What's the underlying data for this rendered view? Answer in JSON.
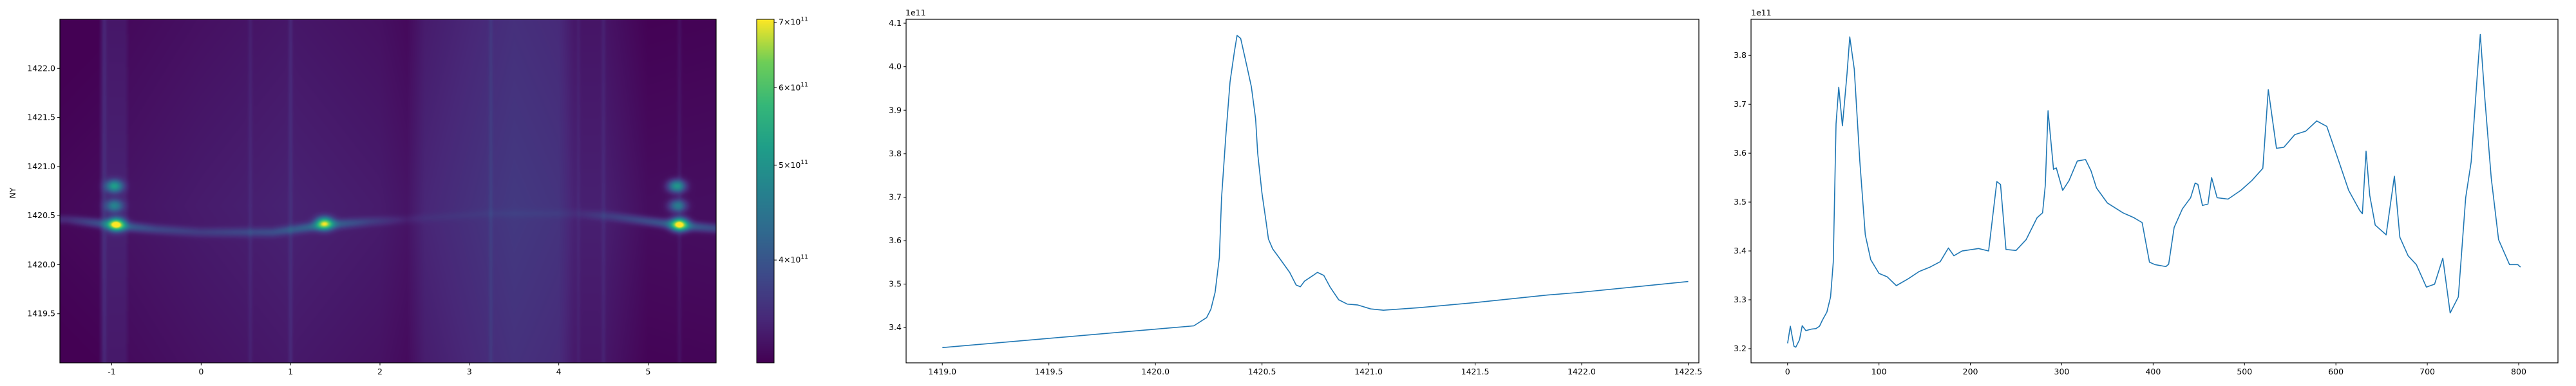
{
  "chart_data": [
    {
      "type": "heatmap",
      "xlim": [
        -1.58,
        5.76
      ],
      "ylim": [
        1419.0,
        1422.5
      ],
      "ylabel": "NY",
      "xticks": [
        -1,
        0,
        1,
        2,
        3,
        4,
        5
      ],
      "xtick_labels": [
        "-1",
        "0",
        "1",
        "2",
        "3",
        "4",
        "5"
      ],
      "yticks": [
        1419.5,
        1420.0,
        1420.5,
        1421.0,
        1421.5,
        1422.0
      ],
      "ytick_labels": [
        "1419.5",
        "1420.0",
        "1420.5",
        "1421.0",
        "1421.5",
        "1422.0"
      ],
      "colormap": "viridis",
      "color_scale": "log",
      "color_range": [
        314000000000.0,
        705000000000.0
      ],
      "colorbar": {
        "ticks": [
          400000000000.0,
          500000000000.0,
          600000000000.0,
          700000000000.0
        ],
        "tick_labels": [
          {
            "mant": "4",
            "exp": "11"
          },
          {
            "mant": "5",
            "exp": "11"
          },
          {
            "mant": "6",
            "exp": "11"
          },
          {
            "mant": "7",
            "exp": "11"
          }
        ]
      },
      "column_profile_1e11": [
        [
          -1.58,
          3.2
        ],
        [
          -1.15,
          3.22
        ],
        [
          -1.1,
          3.42
        ],
        [
          -0.85,
          3.42
        ],
        [
          -0.8,
          3.3
        ],
        [
          0,
          3.36
        ],
        [
          1,
          3.42
        ],
        [
          2,
          3.36
        ],
        [
          2.3,
          3.3
        ],
        [
          2.5,
          3.46
        ],
        [
          3.5,
          3.66
        ],
        [
          4.0,
          3.6
        ],
        [
          4.2,
          3.4
        ],
        [
          4.5,
          3.4
        ],
        [
          5.0,
          3.24
        ],
        [
          5.76,
          3.25
        ]
      ],
      "stripes": [
        [
          -1.08,
          0.12
        ],
        [
          0.55,
          0.1
        ],
        [
          1.0,
          0.14
        ],
        [
          3.24,
          0.14
        ],
        [
          4.22,
          0.08
        ],
        [
          4.5,
          0.1
        ],
        [
          5.35,
          0.1
        ]
      ],
      "ridge": [
        [
          -1.5,
          1420.46,
          0.3
        ],
        [
          -0.95,
          1420.4,
          0.9
        ],
        [
          -0.5,
          1420.36,
          0.5
        ],
        [
          0,
          1420.33,
          0.35
        ],
        [
          0.8,
          1420.33,
          0.5
        ],
        [
          1.35,
          1420.4,
          0.9
        ],
        [
          1.9,
          1420.44,
          0.35
        ],
        [
          2.3,
          1420.46,
          0.1
        ],
        [
          3.2,
          1420.52,
          0.08
        ],
        [
          4.2,
          1420.52,
          0.1
        ],
        [
          4.6,
          1420.49,
          0.35
        ],
        [
          5.35,
          1420.4,
          0.9
        ],
        [
          5.76,
          1420.37,
          0.6
        ]
      ],
      "hotspots": [
        {
          "x": -0.95,
          "y": 1420.41,
          "value": 700000000000.0
        },
        {
          "x": -0.97,
          "y": 1420.8,
          "value": 530000000000.0
        },
        {
          "x": -0.97,
          "y": 1420.6,
          "value": 480000000000.0
        },
        {
          "x": 1.38,
          "y": 1420.42,
          "value": 640000000000.0
        },
        {
          "x": 5.35,
          "y": 1420.41,
          "value": 700000000000.0
        },
        {
          "x": 5.32,
          "y": 1420.8,
          "value": 530000000000.0
        },
        {
          "x": 5.33,
          "y": 1420.6,
          "value": 480000000000.0
        }
      ]
    },
    {
      "type": "line",
      "xlim": [
        1418.83,
        1422.55
      ],
      "ylim": [
        3.319,
        4.109
      ],
      "y_offset_label": "1e11",
      "xticks": [
        1419.0,
        1419.5,
        1420.0,
        1420.5,
        1421.0,
        1421.5,
        1422.0,
        1422.5
      ],
      "xtick_labels": [
        "1419.0",
        "1419.5",
        "1420.0",
        "1420.5",
        "1421.0",
        "1421.5",
        "1422.0",
        "1422.5"
      ],
      "yticks": [
        3.4,
        3.5,
        3.6,
        3.7,
        3.8,
        3.9,
        4.0,
        4.1
      ],
      "ytick_labels": [
        "3.4",
        "3.5",
        "3.6",
        "3.7",
        "3.8",
        "3.9",
        "4.0",
        "4.1"
      ],
      "color": "#1f77b4",
      "x": [
        1419.0,
        1420.18,
        1420.24,
        1420.26,
        1420.28,
        1420.3,
        1420.31,
        1420.33,
        1420.35,
        1420.37,
        1420.383,
        1420.4,
        1420.43,
        1420.45,
        1420.47,
        1420.48,
        1420.5,
        1420.52,
        1420.53,
        1420.55,
        1420.58,
        1420.63,
        1420.66,
        1420.68,
        1420.7,
        1420.74,
        1420.76,
        1420.79,
        1420.82,
        1420.86,
        1420.9,
        1420.95,
        1421.01,
        1421.07,
        1421.24,
        1421.49,
        1421.84,
        1421.99,
        1422.5
      ],
      "y": [
        3.354,
        3.404,
        3.423,
        3.442,
        3.481,
        3.561,
        3.698,
        3.84,
        3.965,
        4.033,
        4.072,
        4.065,
        3.999,
        3.954,
        3.88,
        3.8,
        3.709,
        3.641,
        3.604,
        3.581,
        3.561,
        3.527,
        3.498,
        3.494,
        3.507,
        3.52,
        3.527,
        3.52,
        3.493,
        3.464,
        3.454,
        3.452,
        3.443,
        3.44,
        3.446,
        3.457,
        3.475,
        3.481,
        3.506
      ]
    },
    {
      "type": "line",
      "xlim": [
        -40,
        843
      ],
      "ylim": [
        3.171,
        3.874
      ],
      "y_offset_label": "1e11",
      "xticks": [
        0,
        100,
        200,
        300,
        400,
        500,
        600,
        700,
        800
      ],
      "xtick_labels": [
        "0",
        "100",
        "200",
        "300",
        "400",
        "500",
        "600",
        "700",
        "800"
      ],
      "yticks": [
        3.2,
        3.3,
        3.4,
        3.5,
        3.6,
        3.7,
        3.8
      ],
      "ytick_labels": [
        "3.2",
        "3.3",
        "3.4",
        "3.5",
        "3.6",
        "3.7",
        "3.8"
      ],
      "color": "#1f77b4",
      "x": [
        0,
        3,
        7,
        9,
        13,
        16,
        20,
        26,
        31,
        35,
        38,
        43,
        47,
        50,
        53,
        56,
        60,
        65,
        68,
        73,
        79,
        85,
        91,
        100,
        109,
        119,
        132,
        144,
        156,
        167,
        176,
        182,
        191,
        209,
        220,
        229,
        233,
        239,
        250,
        261,
        273,
        279,
        282,
        285,
        291,
        294,
        301,
        308,
        317,
        326,
        332,
        338,
        350,
        367,
        379,
        388,
        396,
        402,
        414,
        417,
        423,
        432,
        441,
        446,
        449,
        454,
        460,
        464,
        470,
        482,
        496,
        508,
        520,
        526,
        535,
        543,
        555,
        567,
        579,
        590,
        602,
        614,
        626,
        629,
        633,
        637,
        643,
        655,
        664,
        670,
        679,
        688,
        699,
        708,
        717,
        725,
        734,
        742,
        748,
        755,
        758,
        763,
        770,
        778,
        790,
        799,
        802
      ],
      "y": [
        3.211,
        3.246,
        3.205,
        3.203,
        3.218,
        3.247,
        3.237,
        3.24,
        3.241,
        3.246,
        3.258,
        3.275,
        3.306,
        3.377,
        3.66,
        3.735,
        3.656,
        3.762,
        3.838,
        3.772,
        3.584,
        3.433,
        3.382,
        3.354,
        3.347,
        3.329,
        3.343,
        3.358,
        3.367,
        3.378,
        3.406,
        3.39,
        3.4,
        3.405,
        3.4,
        3.542,
        3.536,
        3.403,
        3.401,
        3.423,
        3.468,
        3.478,
        3.534,
        3.687,
        3.567,
        3.57,
        3.524,
        3.544,
        3.584,
        3.587,
        3.564,
        3.529,
        3.498,
        3.478,
        3.468,
        3.458,
        3.377,
        3.372,
        3.368,
        3.373,
        3.448,
        3.486,
        3.509,
        3.539,
        3.536,
        3.493,
        3.496,
        3.55,
        3.509,
        3.506,
        3.524,
        3.544,
        3.569,
        3.73,
        3.61,
        3.612,
        3.638,
        3.645,
        3.666,
        3.655,
        3.59,
        3.524,
        3.483,
        3.476,
        3.604,
        3.514,
        3.453,
        3.433,
        3.553,
        3.428,
        3.39,
        3.372,
        3.326,
        3.332,
        3.385,
        3.273,
        3.306,
        3.509,
        3.582,
        3.767,
        3.843,
        3.711,
        3.549,
        3.423,
        3.372,
        3.372,
        3.367
      ]
    }
  ]
}
